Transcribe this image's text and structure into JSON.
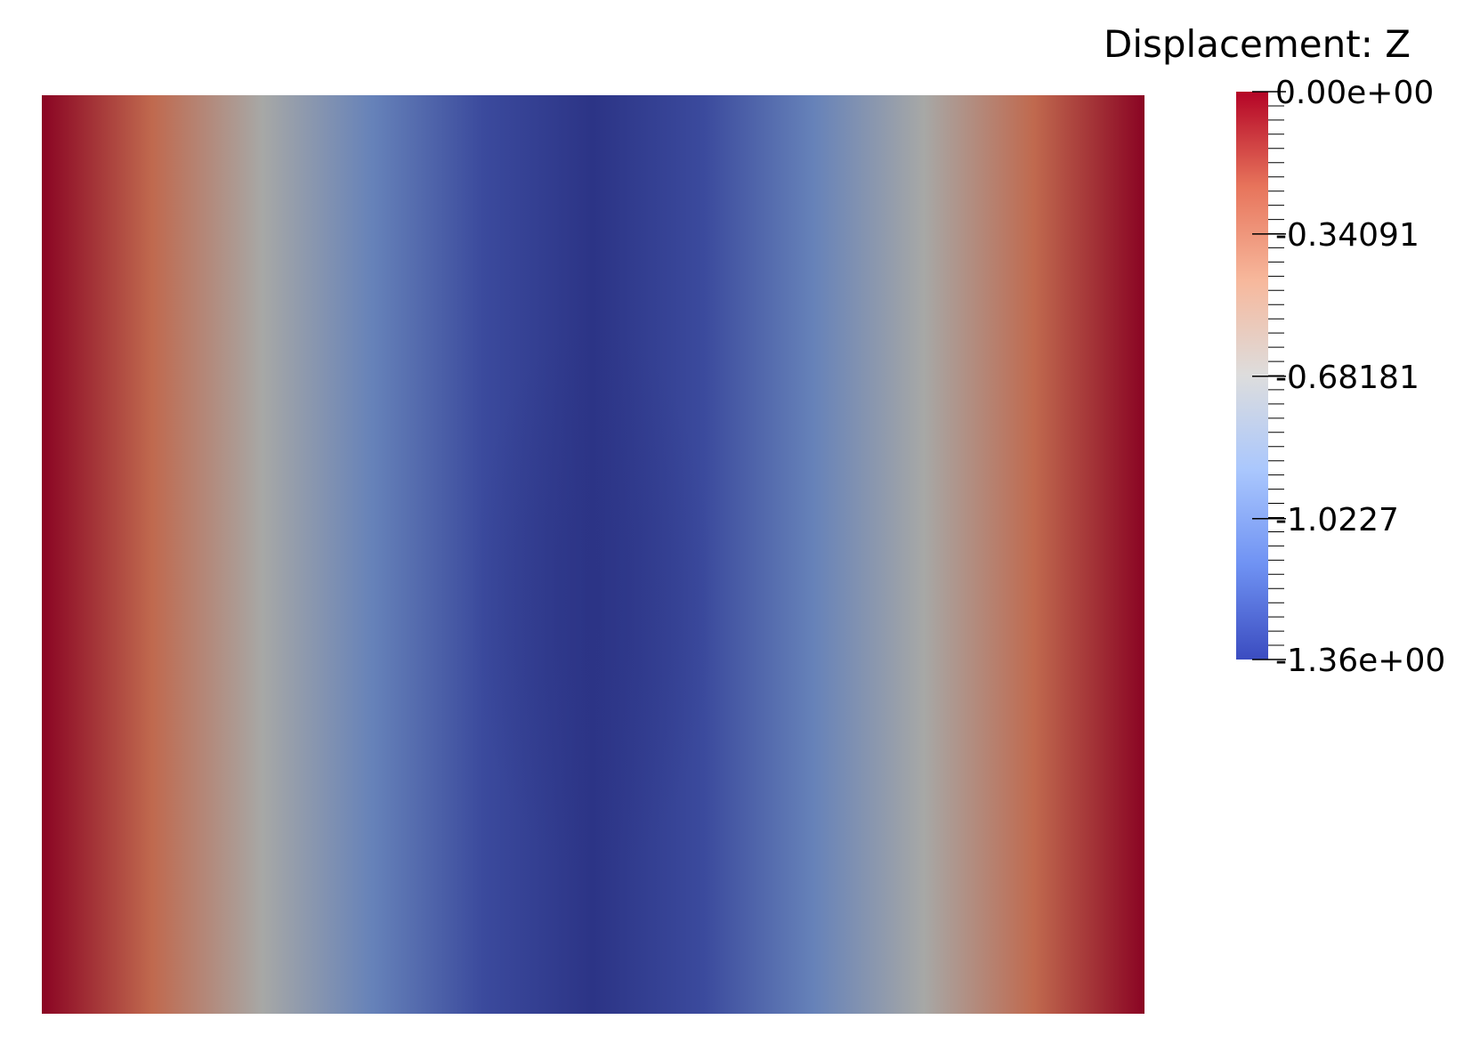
{
  "chart_data": {
    "type": "heatmap",
    "field": "Displacement: Z",
    "range": [
      -1.36,
      0.0
    ],
    "colormap": [
      "#3b4cc0",
      "#6f92f3",
      "#aac7fd",
      "#dddddd",
      "#f7b89c",
      "#e7745b",
      "#b40426"
    ],
    "surface_colors": [
      "#8a0423",
      "#c0694e",
      "#a7a8a6",
      "#6682b9",
      "#3b4a9d",
      "#2c3486"
    ],
    "scalar_bar": {
      "title": "Displacement: Z",
      "ticks": [
        {
          "value": 0.0,
          "label": "0.00e+00"
        },
        {
          "value": -0.34091,
          "label": "-0.34091"
        },
        {
          "value": -0.68181,
          "label": "-0.68181"
        },
        {
          "value": -1.0227,
          "label": "-1.0227"
        },
        {
          "value": -1.36,
          "label": "-1.36e+00"
        }
      ],
      "placement": "top-right"
    }
  }
}
